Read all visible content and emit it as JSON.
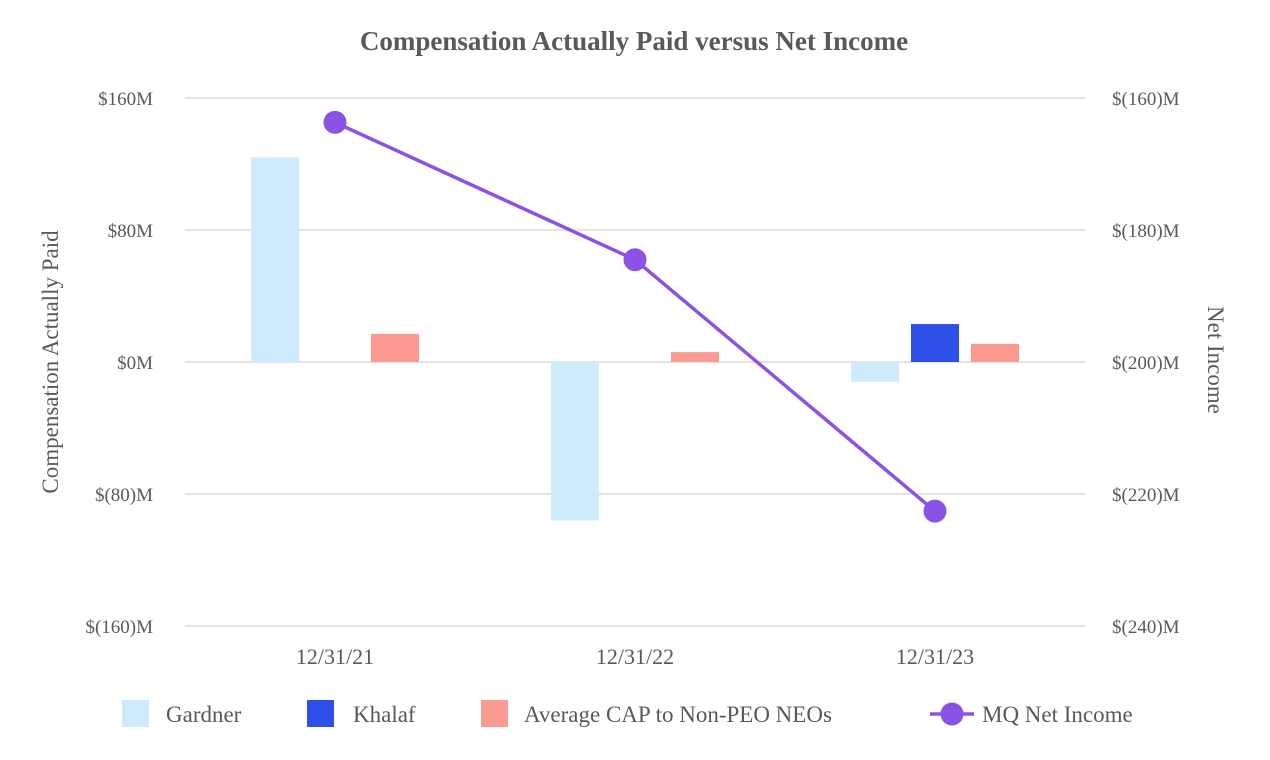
{
  "chart_data": {
    "type": "bar+line",
    "title": "Compensation Actually Paid versus Net Income",
    "categories": [
      "12/31/21",
      "12/31/22",
      "12/31/23"
    ],
    "y_left": {
      "label": "Compensation Actually Paid",
      "range": [
        -160,
        160
      ],
      "ticks": [
        160,
        80,
        0,
        -80,
        -160
      ],
      "tick_labels": [
        "$160M",
        "$80M",
        "$0M",
        "$(80)M",
        "$(160)M"
      ],
      "unit": "$M"
    },
    "y_right": {
      "label": "Net Income",
      "range": [
        -240,
        -160
      ],
      "ticks": [
        -160,
        -180,
        -200,
        -220,
        -240
      ],
      "tick_labels": [
        "$(160)M",
        "$(180)M",
        "$(200)M",
        "$(220)M",
        "$(240)M"
      ],
      "unit": "$M"
    },
    "grid": true,
    "legend_position": "bottom",
    "series": [
      {
        "name": "Gardner",
        "type": "bar",
        "axis": "left",
        "color": "#CDEBFB",
        "values": [
          124,
          -96,
          -12
        ]
      },
      {
        "name": "Khalaf",
        "type": "bar",
        "axis": "left",
        "color": "#2E4FE8",
        "values": [
          null,
          null,
          23
        ]
      },
      {
        "name": "Average CAP to Non-PEO NEOs",
        "type": "bar",
        "axis": "left",
        "color": "#FA9A91",
        "values": [
          17,
          6,
          11
        ]
      },
      {
        "name": "MQ Net Income",
        "type": "line",
        "axis": "right",
        "color": "#8B52E6",
        "values": [
          -163.7,
          -184.5,
          -222.6
        ]
      }
    ]
  }
}
